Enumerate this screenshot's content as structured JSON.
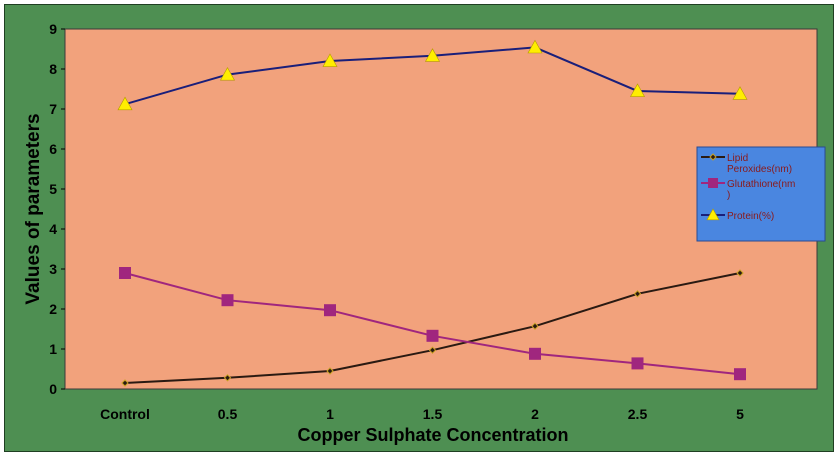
{
  "colors": {
    "background": "#4e8f52",
    "plot_area": "#f2a27c",
    "legend_bg": "#4a86e0",
    "lipid": "#2a1a12",
    "glutathione": "#a0267e",
    "protein_line": "#1a1f7a",
    "protein_marker": "#ffee00"
  },
  "chart_data": {
    "type": "line",
    "title": "",
    "xlabel": "Copper Sulphate Concentration",
    "ylabel": "Values of parameters",
    "categories": [
      "Control",
      "0.5",
      "1",
      "1.5",
      "2",
      "2.5",
      "5"
    ],
    "ylim": [
      0,
      9
    ],
    "yticks": [
      "0",
      "1",
      "2",
      "3",
      "4",
      "5",
      "6",
      "7",
      "8",
      "9"
    ],
    "grid": false,
    "legend_position": "right",
    "series": [
      {
        "name": "Lipid Peroxides(nm)",
        "legend_lines": [
          "Lipid",
          "Peroxides(nm)"
        ],
        "marker": "diamond",
        "values": [
          0.15,
          0.28,
          0.45,
          0.97,
          1.57,
          2.38,
          2.9
        ]
      },
      {
        "name": "Glutathione(nm)",
        "legend_lines": [
          "Glutathione(nm",
          ")"
        ],
        "marker": "square",
        "values": [
          2.9,
          2.22,
          1.97,
          1.33,
          0.88,
          0.64,
          0.37
        ]
      },
      {
        "name": "Protein(%)",
        "legend_lines": [
          "Protein(%)"
        ],
        "marker": "triangle",
        "values": [
          7.12,
          7.86,
          8.2,
          8.33,
          8.54,
          7.45,
          7.38
        ]
      }
    ]
  }
}
